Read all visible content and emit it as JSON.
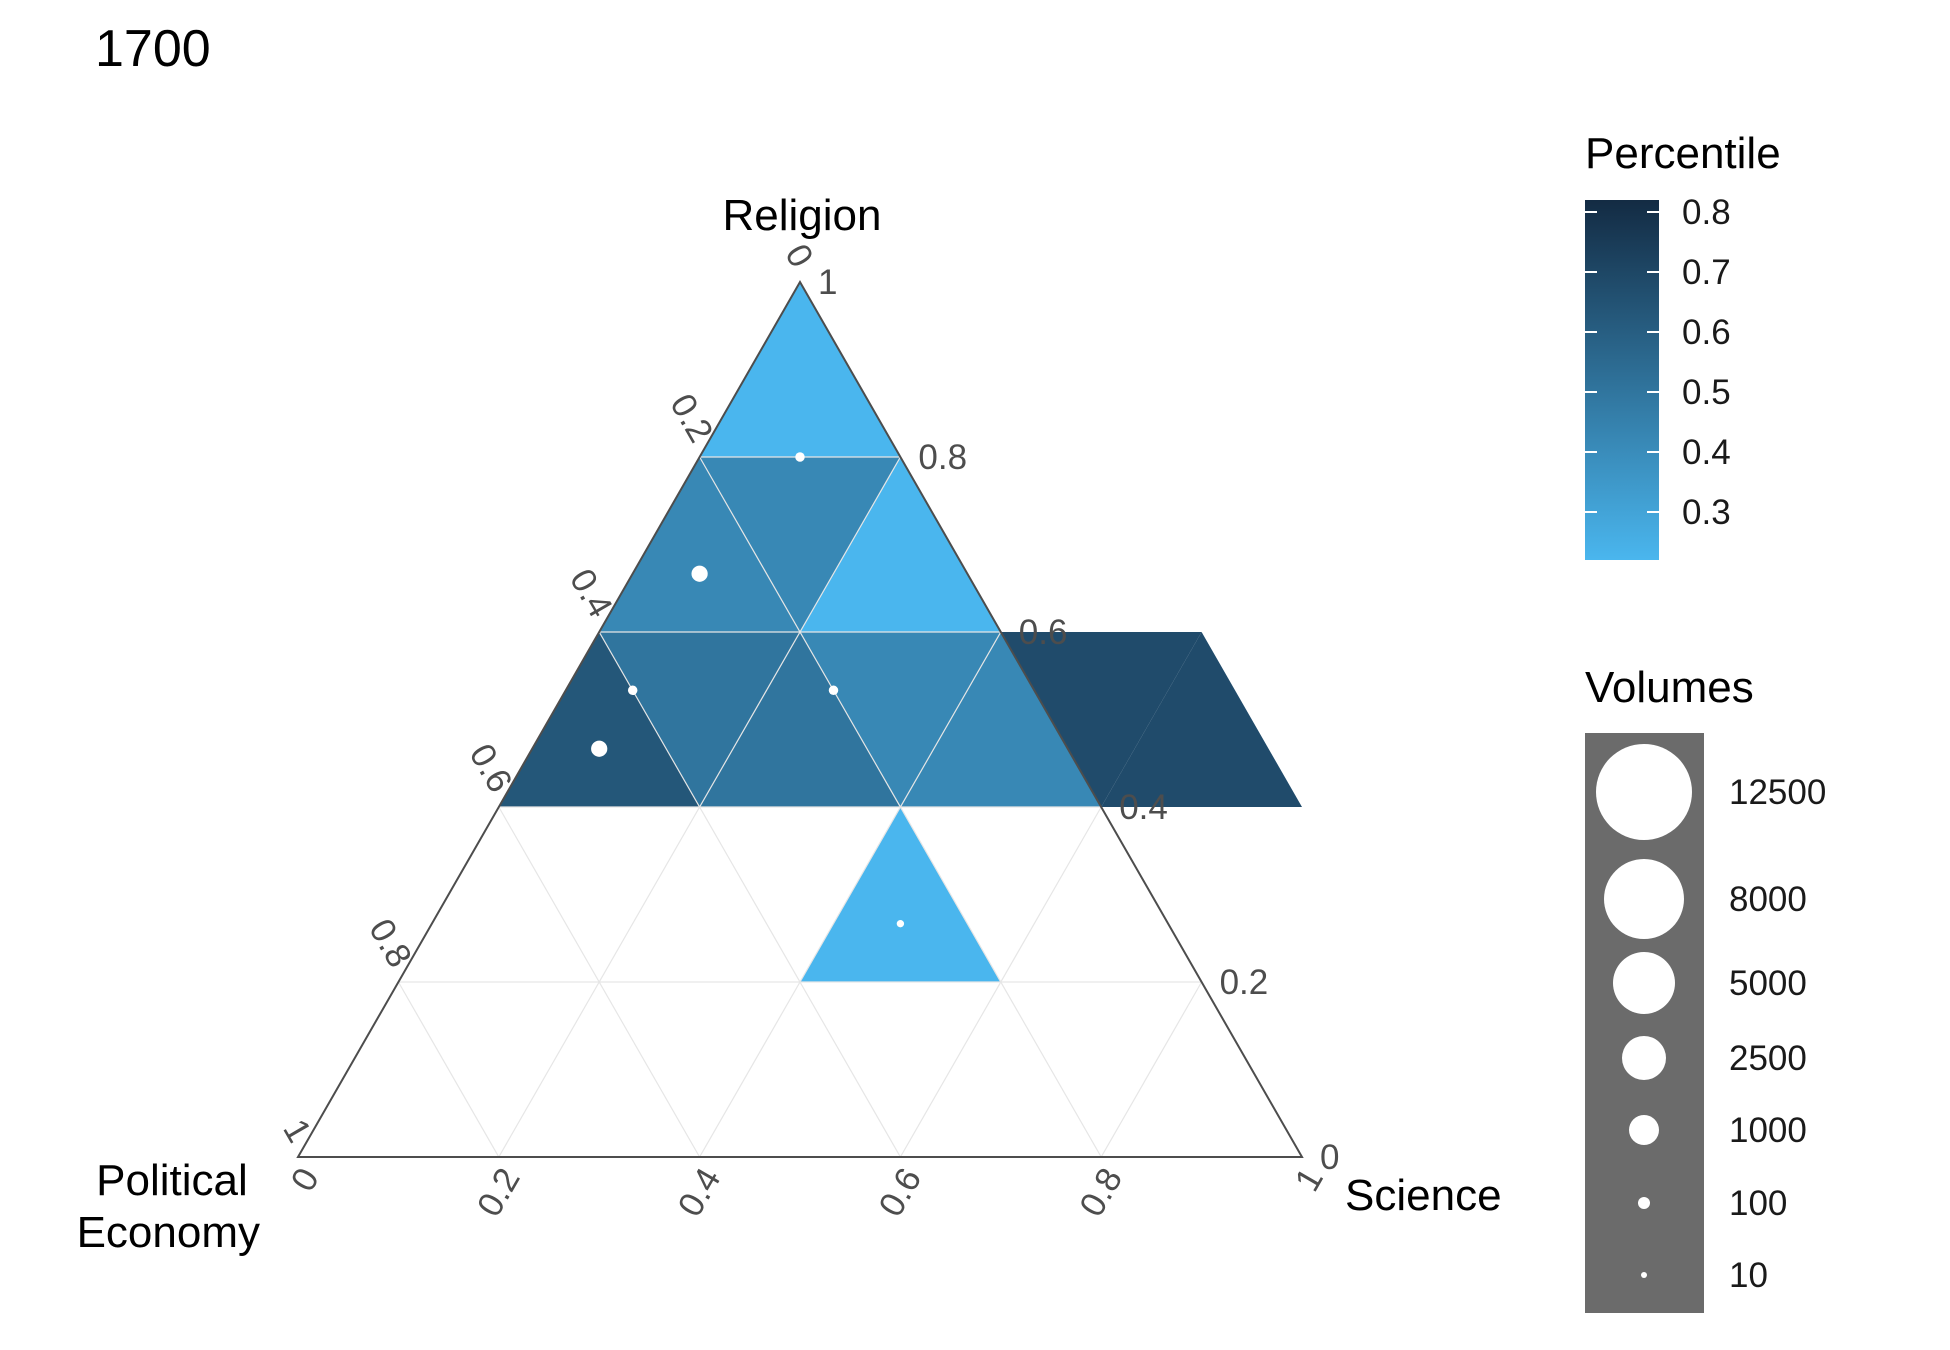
{
  "chart_data": {
    "type": "ternary",
    "title": "1700",
    "axes": {
      "top": "Religion",
      "left": "Political\nEconomy",
      "right": "Science"
    },
    "ticks": [
      "0",
      "0.2",
      "0.4",
      "0.6",
      "0.8",
      "1"
    ],
    "tick_values": [
      0,
      0.2,
      0.4,
      0.6,
      0.8,
      1
    ],
    "grid": true,
    "cells": [
      {
        "religion_range": [
          0.8,
          1.0
        ],
        "science_range": [
          0.0,
          0.2
        ],
        "orientation": "down-pair",
        "percentile": 0.22,
        "volumes": 100
      },
      {
        "religion_range": [
          0.6,
          0.8
        ],
        "science_range": [
          0.0,
          0.2
        ],
        "orientation": "up",
        "percentile": 0.42,
        "volumes": 1000
      },
      {
        "religion_range": [
          0.6,
          0.8
        ],
        "science_range": [
          0.0,
          0.2
        ],
        "orientation": "down",
        "percentile": 0.42,
        "volumes": null
      },
      {
        "religion_range": [
          0.6,
          0.8
        ],
        "science_range": [
          0.2,
          0.4
        ],
        "orientation": "up",
        "percentile": 0.22,
        "volumes": null
      },
      {
        "religion_range": [
          0.4,
          0.6
        ],
        "science_range": [
          0.0,
          0.2
        ],
        "orientation": "up",
        "percentile": 0.63,
        "volumes": 1000
      },
      {
        "religion_range": [
          0.4,
          0.6
        ],
        "science_range": [
          0.0,
          0.2
        ],
        "orientation": "down",
        "percentile": 0.5,
        "volumes": 100
      },
      {
        "religion_range": [
          0.4,
          0.6
        ],
        "science_range": [
          0.2,
          0.4
        ],
        "orientation": "up",
        "percentile": 0.5,
        "volumes": null
      },
      {
        "religion_range": [
          0.4,
          0.6
        ],
        "science_range": [
          0.2,
          0.4
        ],
        "orientation": "down",
        "percentile": 0.42,
        "volumes": 100
      },
      {
        "religion_range": [
          0.4,
          0.6
        ],
        "science_range": [
          0.4,
          0.6
        ],
        "orientation": "up",
        "percentile": 0.42,
        "volumes": null
      },
      {
        "religion_range": [
          0.4,
          0.6
        ],
        "science_range": [
          0.4,
          0.6
        ],
        "orientation": "down",
        "percentile": 0.68,
        "volumes": null
      },
      {
        "religion_range": [
          0.4,
          0.6
        ],
        "science_range": [
          0.6,
          0.8
        ],
        "orientation": "up",
        "percentile": 0.68,
        "volumes": null
      },
      {
        "religion_range": [
          0.2,
          0.4
        ],
        "science_range": [
          0.4,
          0.6
        ],
        "orientation": "up",
        "percentile": 0.22,
        "volumes": 10
      }
    ],
    "legend_percentile": {
      "title": "Percentile",
      "labels": [
        "0.8",
        "0.7",
        "0.6",
        "0.5",
        "0.4",
        "0.3"
      ],
      "values": [
        0.8,
        0.7,
        0.6,
        0.5,
        0.4,
        0.3
      ],
      "range": [
        0.22,
        0.82
      ],
      "color_low": "#4ab6ee",
      "color_high": "#132b43"
    },
    "legend_volumes": {
      "title": "Volumes",
      "labels": [
        "12500",
        "8000",
        "5000",
        "2500",
        "1000",
        "100",
        "10"
      ],
      "values": [
        12500,
        8000,
        5000,
        2500,
        1000,
        100,
        10
      ],
      "background": "#6b6b6b"
    }
  }
}
